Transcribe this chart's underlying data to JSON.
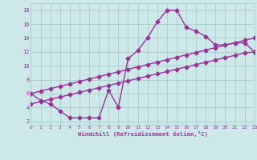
{
  "main_x": [
    0,
    1,
    2,
    3,
    4,
    5,
    6,
    7,
    8,
    9,
    10,
    11,
    12,
    13,
    14,
    15,
    16,
    17,
    18,
    19,
    20,
    21,
    22,
    23
  ],
  "main_y": [
    6,
    5,
    4.5,
    3.5,
    2.5,
    2.5,
    2.5,
    2.5,
    6.5,
    4,
    11,
    12.2,
    14,
    16.3,
    18,
    18,
    15.5,
    15,
    14.2,
    13,
    13,
    13.3,
    13.3,
    12
  ],
  "upper_x": [
    0,
    1,
    2,
    3,
    4,
    5,
    6,
    7,
    8,
    9,
    10,
    11,
    12,
    13,
    14,
    15,
    16,
    17,
    18,
    19,
    20,
    21,
    22,
    23
  ],
  "upper_y": [
    6.0,
    6.35,
    6.7,
    7.04,
    7.39,
    7.74,
    8.09,
    8.43,
    8.78,
    9.13,
    9.48,
    9.83,
    10.17,
    10.52,
    10.87,
    11.22,
    11.57,
    11.91,
    12.26,
    12.61,
    12.96,
    13.3,
    13.65,
    14.0
  ],
  "lower_x": [
    0,
    1,
    2,
    3,
    4,
    5,
    6,
    7,
    8,
    9,
    10,
    11,
    12,
    13,
    14,
    15,
    16,
    17,
    18,
    19,
    20,
    21,
    22,
    23
  ],
  "lower_y": [
    4.5,
    4.83,
    5.17,
    5.5,
    5.83,
    6.17,
    6.5,
    6.83,
    7.17,
    7.5,
    7.83,
    8.17,
    8.5,
    8.83,
    9.17,
    9.5,
    9.83,
    10.17,
    10.5,
    10.83,
    11.17,
    11.5,
    11.83,
    12.0
  ],
  "line_color": "#993399",
  "bg_color": "#cce8e8",
  "grid_color": "#aacccc",
  "xlabel": "Windchill (Refroidissement éolien,°C)",
  "xlim": [
    0,
    23
  ],
  "ylim": [
    1.5,
    19
  ],
  "yticks": [
    2,
    4,
    6,
    8,
    10,
    12,
    14,
    16,
    18
  ],
  "xticks": [
    0,
    1,
    2,
    3,
    4,
    5,
    6,
    7,
    8,
    9,
    10,
    11,
    12,
    13,
    14,
    15,
    16,
    17,
    18,
    19,
    20,
    21,
    22,
    23
  ],
  "marker": "D",
  "markersize": 2.5,
  "linewidth": 1.0
}
